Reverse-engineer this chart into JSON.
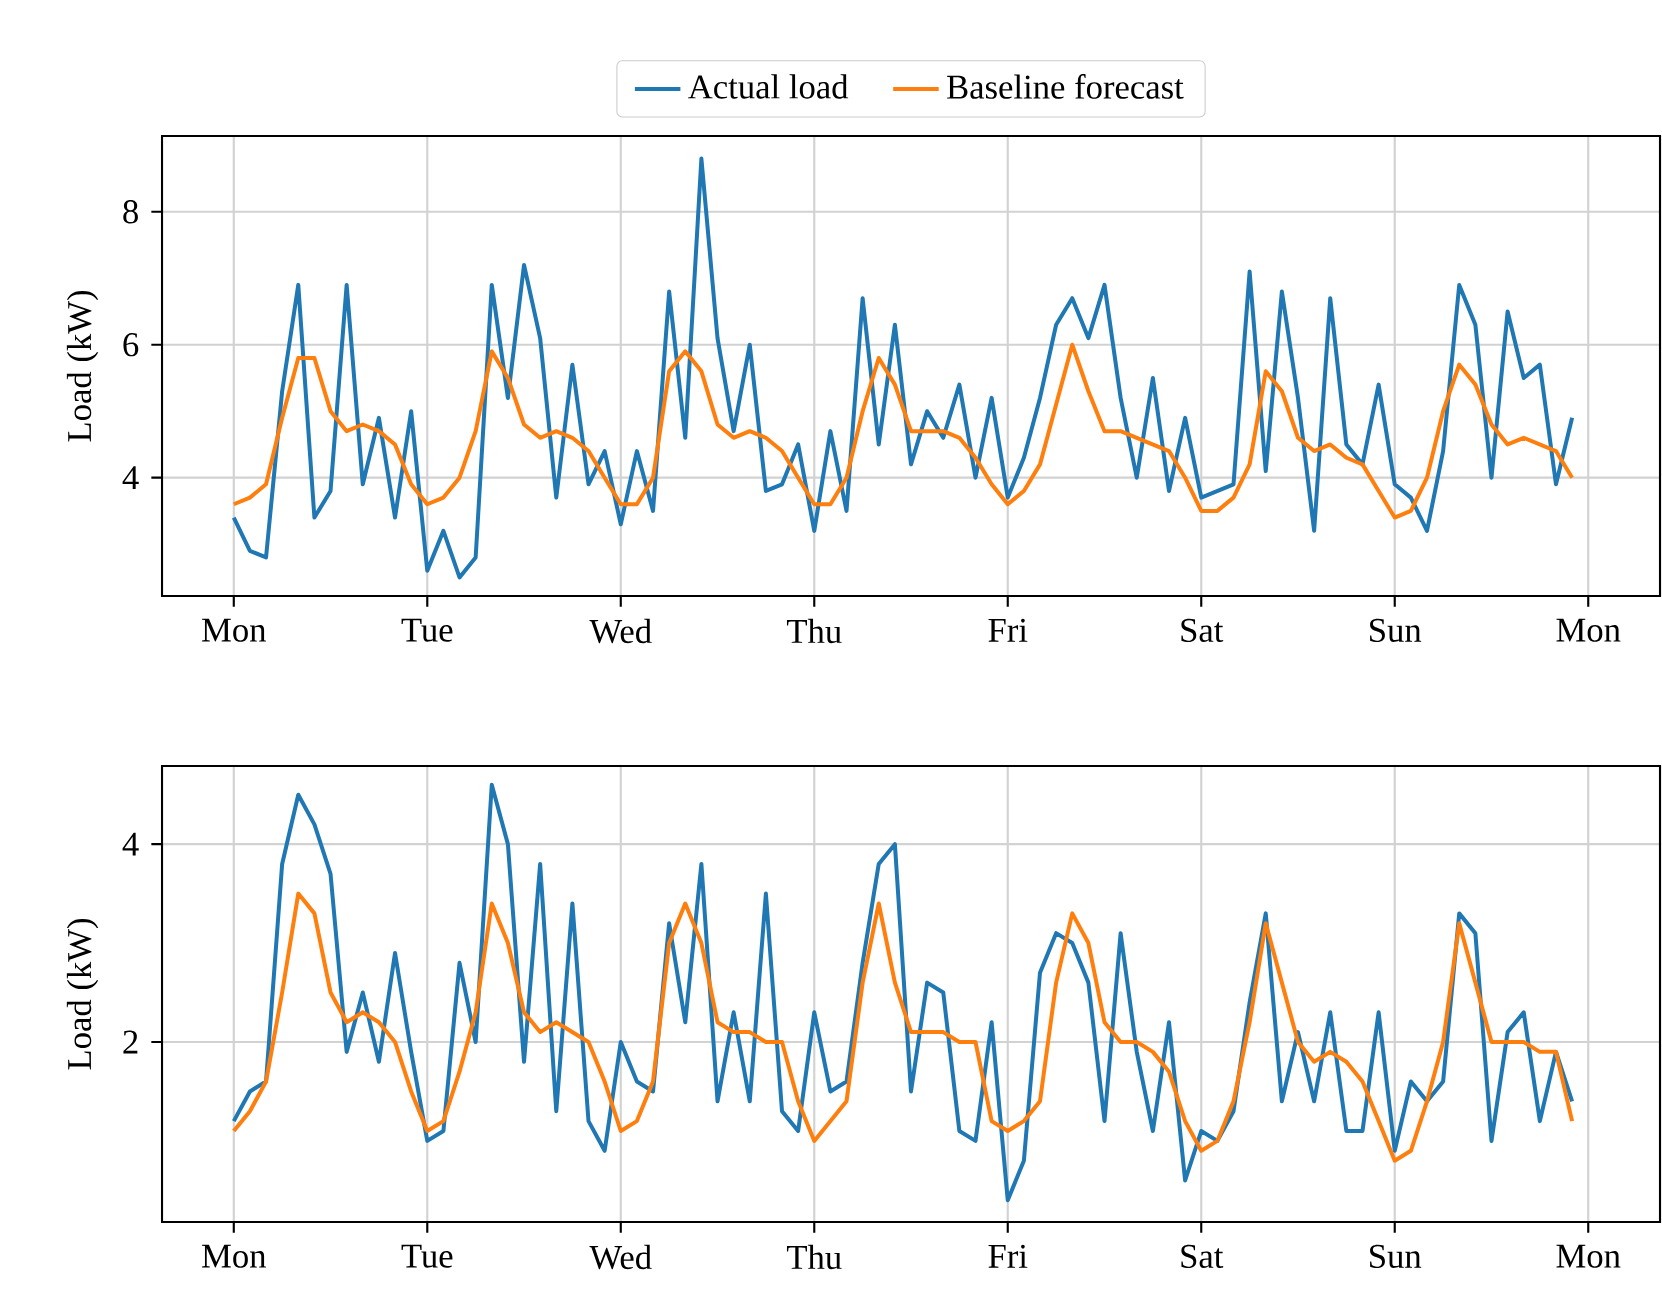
{
  "chart_data": [
    {
      "type": "line",
      "ylabel": "Load (kW)",
      "grid": true,
      "legend": "top",
      "ylim": [
        2.22,
        9.14
      ],
      "yticks": [
        4,
        6,
        8
      ],
      "categories": [
        "Mon",
        null,
        null,
        null,
        null,
        null,
        null,
        null,
        null,
        null,
        null,
        null,
        "Tue",
        null,
        null,
        null,
        null,
        null,
        null,
        null,
        null,
        null,
        null,
        null,
        "Wed",
        null,
        null,
        null,
        null,
        null,
        null,
        null,
        null,
        null,
        null,
        null,
        "Thu",
        null,
        null,
        null,
        null,
        null,
        null,
        null,
        null,
        null,
        null,
        null,
        "Fri",
        null,
        null,
        null,
        null,
        null,
        null,
        null,
        null,
        null,
        null,
        null,
        "Sat",
        null,
        null,
        null,
        null,
        null,
        null,
        null,
        null,
        null,
        null,
        null,
        "Sun",
        null,
        null,
        null,
        null,
        null,
        null,
        null,
        null,
        null,
        null,
        null,
        "Mon"
      ],
      "series": [
        {
          "name": "Actual load",
          "color": "#1f77b4",
          "values": [
            3.4,
            2.9,
            2.8,
            5.3,
            6.9,
            3.4,
            3.8,
            6.9,
            3.9,
            4.9,
            3.4,
            5.0,
            2.6,
            3.2,
            2.5,
            2.8,
            6.9,
            5.2,
            7.2,
            6.1,
            3.7,
            5.7,
            3.9,
            4.4,
            3.3,
            4.4,
            3.5,
            6.8,
            4.6,
            8.8,
            6.1,
            4.7,
            6.0,
            3.8,
            3.9,
            4.5,
            3.2,
            4.7,
            3.5,
            6.7,
            4.5,
            6.3,
            4.2,
            5.0,
            4.6,
            5.4,
            4.0,
            5.2,
            3.7,
            4.3,
            5.2,
            6.3,
            6.7,
            6.1,
            6.9,
            5.2,
            4.0,
            5.5,
            3.8,
            4.9,
            3.7,
            3.8,
            3.9,
            7.1,
            4.1,
            6.8,
            5.2,
            3.2,
            6.7,
            4.5,
            4.2,
            5.4,
            3.9,
            3.7,
            3.2,
            4.4,
            6.9,
            6.3,
            4.0,
            6.5,
            5.5,
            5.7,
            3.9,
            4.9,
            null
          ]
        },
        {
          "name": "Baseline forecast",
          "color": "#ff7f0e",
          "values": [
            3.6,
            3.7,
            3.9,
            4.9,
            5.8,
            5.8,
            5.0,
            4.7,
            4.8,
            4.7,
            4.5,
            3.9,
            3.6,
            3.7,
            4.0,
            4.7,
            5.9,
            5.5,
            4.8,
            4.6,
            4.7,
            4.6,
            4.4,
            4.0,
            3.6,
            3.6,
            4.0,
            5.6,
            5.9,
            5.6,
            4.8,
            4.6,
            4.7,
            4.6,
            4.4,
            4.0,
            3.6,
            3.6,
            4.0,
            5.0,
            5.8,
            5.4,
            4.7,
            4.7,
            4.7,
            4.6,
            4.3,
            3.9,
            3.6,
            3.8,
            4.2,
            5.1,
            6.0,
            5.3,
            4.7,
            4.7,
            4.6,
            4.5,
            4.4,
            4.0,
            3.5,
            3.5,
            3.7,
            4.2,
            5.6,
            5.3,
            4.6,
            4.4,
            4.5,
            4.3,
            4.2,
            3.8,
            3.4,
            3.5,
            4.0,
            5.0,
            5.7,
            5.4,
            4.8,
            4.5,
            4.6,
            4.5,
            4.4,
            4.0,
            null
          ]
        }
      ]
    },
    {
      "type": "line",
      "ylabel": "Load (kW)",
      "grid": true,
      "ylim": [
        0.18,
        4.79
      ],
      "yticks": [
        2,
        4
      ],
      "categories": [
        "Mon",
        null,
        null,
        null,
        null,
        null,
        null,
        null,
        null,
        null,
        null,
        null,
        "Tue",
        null,
        null,
        null,
        null,
        null,
        null,
        null,
        null,
        null,
        null,
        null,
        "Wed",
        null,
        null,
        null,
        null,
        null,
        null,
        null,
        null,
        null,
        null,
        null,
        "Thu",
        null,
        null,
        null,
        null,
        null,
        null,
        null,
        null,
        null,
        null,
        null,
        "Fri",
        null,
        null,
        null,
        null,
        null,
        null,
        null,
        null,
        null,
        null,
        null,
        "Sat",
        null,
        null,
        null,
        null,
        null,
        null,
        null,
        null,
        null,
        null,
        null,
        "Sun",
        null,
        null,
        null,
        null,
        null,
        null,
        null,
        null,
        null,
        null,
        null,
        "Mon"
      ],
      "series": [
        {
          "color": "#1f77b4",
          "values": [
            1.2,
            1.5,
            1.6,
            3.8,
            4.5,
            4.2,
            3.7,
            1.9,
            2.5,
            1.8,
            2.9,
            1.9,
            1.0,
            1.1,
            2.8,
            2.0,
            4.6,
            4.0,
            1.8,
            3.8,
            1.3,
            3.4,
            1.2,
            0.9,
            2.0,
            1.6,
            1.5,
            3.2,
            2.2,
            3.8,
            1.4,
            2.3,
            1.4,
            3.5,
            1.3,
            1.1,
            2.3,
            1.5,
            1.6,
            2.8,
            3.8,
            4.0,
            1.5,
            2.6,
            2.5,
            1.1,
            1.0,
            2.2,
            0.4,
            0.8,
            2.7,
            3.1,
            3.0,
            2.6,
            1.2,
            3.1,
            1.9,
            1.1,
            2.2,
            0.6,
            1.1,
            1.0,
            1.3,
            2.4,
            3.3,
            1.4,
            2.1,
            1.4,
            2.3,
            1.1,
            1.1,
            2.3,
            0.9,
            1.6,
            1.4,
            1.6,
            3.3,
            3.1,
            1.0,
            2.1,
            2.3,
            1.2,
            1.9,
            1.4,
            null
          ]
        },
        {
          "color": "#ff7f0e",
          "values": [
            1.1,
            1.3,
            1.6,
            2.5,
            3.5,
            3.3,
            2.5,
            2.2,
            2.3,
            2.2,
            2.0,
            1.5,
            1.1,
            1.2,
            1.7,
            2.3,
            3.4,
            3.0,
            2.3,
            2.1,
            2.2,
            2.1,
            2.0,
            1.6,
            1.1,
            1.2,
            1.6,
            3.0,
            3.4,
            3.0,
            2.2,
            2.1,
            2.1,
            2.0,
            2.0,
            1.4,
            1.0,
            1.2,
            1.4,
            2.6,
            3.4,
            2.6,
            2.1,
            2.1,
            2.1,
            2.0,
            2.0,
            1.2,
            1.1,
            1.2,
            1.4,
            2.6,
            3.3,
            3.0,
            2.2,
            2.0,
            2.0,
            1.9,
            1.7,
            1.2,
            0.9,
            1.0,
            1.4,
            2.2,
            3.2,
            2.6,
            2.0,
            1.8,
            1.9,
            1.8,
            1.6,
            1.2,
            0.8,
            0.9,
            1.4,
            2.0,
            3.2,
            2.6,
            2.0,
            2.0,
            2.0,
            1.9,
            1.9,
            1.2,
            null
          ]
        }
      ]
    }
  ]
}
